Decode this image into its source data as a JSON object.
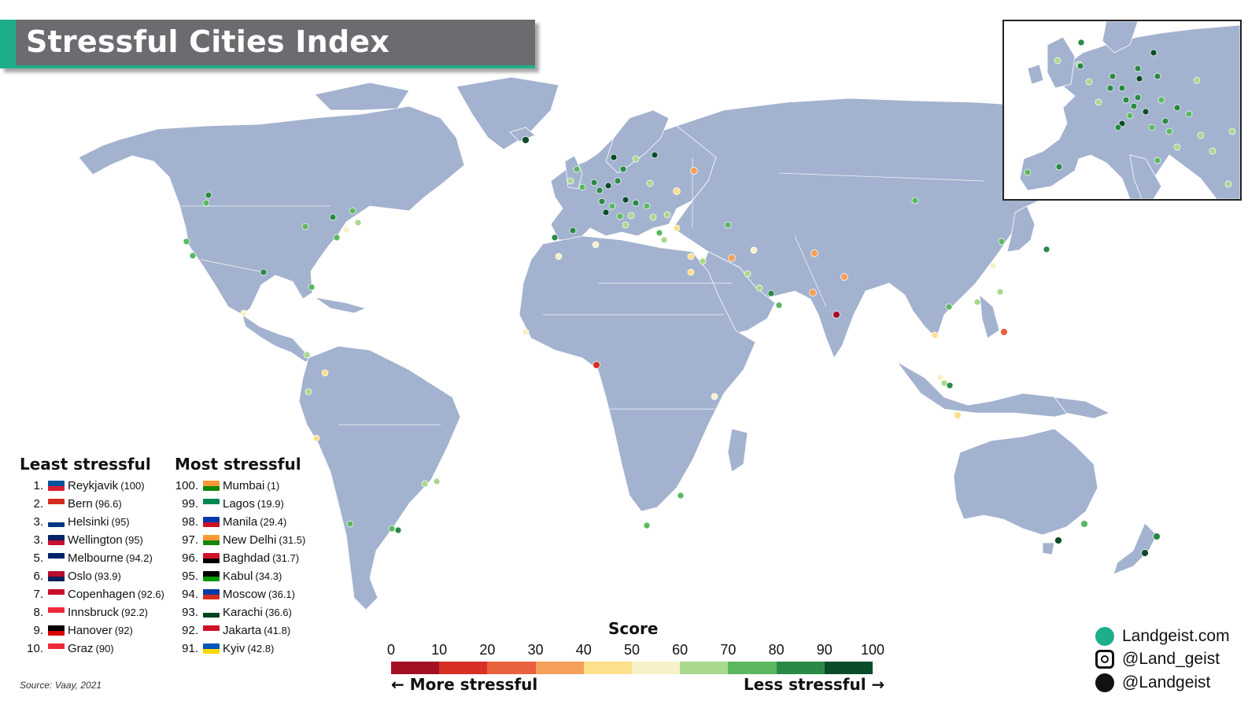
{
  "title": "Stressful Cities Index",
  "least_heading": "Least stressful",
  "most_heading": "Most stressful",
  "least": [
    {
      "rank": "1.",
      "city": "Reykjavik",
      "score": "(100)",
      "flag": [
        "#02529c",
        "#dc1e35"
      ]
    },
    {
      "rank": "2.",
      "city": "Bern",
      "score": "(96.6)",
      "flag": [
        "#d52b1e",
        "#ffffff"
      ]
    },
    {
      "rank": "3.",
      "city": "Helsinki",
      "score": "(95)",
      "flag": [
        "#ffffff",
        "#003580"
      ]
    },
    {
      "rank": "3.",
      "city": "Wellington",
      "score": "(95)",
      "flag": [
        "#012169",
        "#c8102e"
      ]
    },
    {
      "rank": "5.",
      "city": "Melbourne",
      "score": "(94.2)",
      "flag": [
        "#012169",
        "#ffffff"
      ]
    },
    {
      "rank": "6.",
      "city": "Oslo",
      "score": "(93.9)",
      "flag": [
        "#ba0c2f",
        "#00205b"
      ]
    },
    {
      "rank": "7.",
      "city": "Copenhagen",
      "score": "(92.6)",
      "flag": [
        "#c8102e",
        "#ffffff"
      ]
    },
    {
      "rank": "8.",
      "city": "Innsbruck",
      "score": "(92.2)",
      "flag": [
        "#ed2939",
        "#ffffff"
      ]
    },
    {
      "rank": "9.",
      "city": "Hanover",
      "score": "(92)",
      "flag": [
        "#000000",
        "#dd0000"
      ]
    },
    {
      "rank": "10.",
      "city": "Graz",
      "score": "(90)",
      "flag": [
        "#ed2939",
        "#ffffff"
      ]
    }
  ],
  "most": [
    {
      "rank": "100.",
      "city": "Mumbai",
      "score": "(1)",
      "flag": [
        "#ff9933",
        "#138808"
      ]
    },
    {
      "rank": "99.",
      "city": "Lagos",
      "score": "(19.9)",
      "flag": [
        "#008751",
        "#ffffff"
      ]
    },
    {
      "rank": "98.",
      "city": "Manila",
      "score": "(29.4)",
      "flag": [
        "#0038a8",
        "#ce1126"
      ]
    },
    {
      "rank": "97.",
      "city": "New Delhi",
      "score": "(31.5)",
      "flag": [
        "#ff9933",
        "#138808"
      ]
    },
    {
      "rank": "96.",
      "city": "Baghdad",
      "score": "(31.7)",
      "flag": [
        "#ce1126",
        "#000000"
      ]
    },
    {
      "rank": "95.",
      "city": "Kabul",
      "score": "(34.3)",
      "flag": [
        "#000000",
        "#009900"
      ]
    },
    {
      "rank": "94.",
      "city": "Moscow",
      "score": "(36.1)",
      "flag": [
        "#0039a6",
        "#d52b1e"
      ]
    },
    {
      "rank": "93.",
      "city": "Karachi",
      "score": "(36.6)",
      "flag": [
        "#ffffff",
        "#01411c"
      ]
    },
    {
      "rank": "92.",
      "city": "Jakarta",
      "score": "(41.8)",
      "flag": [
        "#ce1126",
        "#ffffff"
      ]
    },
    {
      "rank": "91.",
      "city": "Kyiv",
      "score": "(42.8)",
      "flag": [
        "#0057b7",
        "#ffd700"
      ]
    }
  ],
  "legend": {
    "title": "Score",
    "ticks": [
      "0",
      "10",
      "20",
      "30",
      "40",
      "50",
      "60",
      "70",
      "80",
      "90",
      "100"
    ],
    "colors": [
      "#a50f26",
      "#d73027",
      "#e8603c",
      "#f5a05a",
      "#fde08c",
      "#f6f1c6",
      "#a9d98c",
      "#5cb860",
      "#2a8a45",
      "#0b4d2a"
    ],
    "more_label": "← More stressful",
    "less_label": "Less stressful →"
  },
  "source": "Source: Vaay, 2021",
  "social": {
    "site": "Landgeist.com",
    "instagram": "@Land_geist",
    "twitter": "@Landgeist"
  }
}
